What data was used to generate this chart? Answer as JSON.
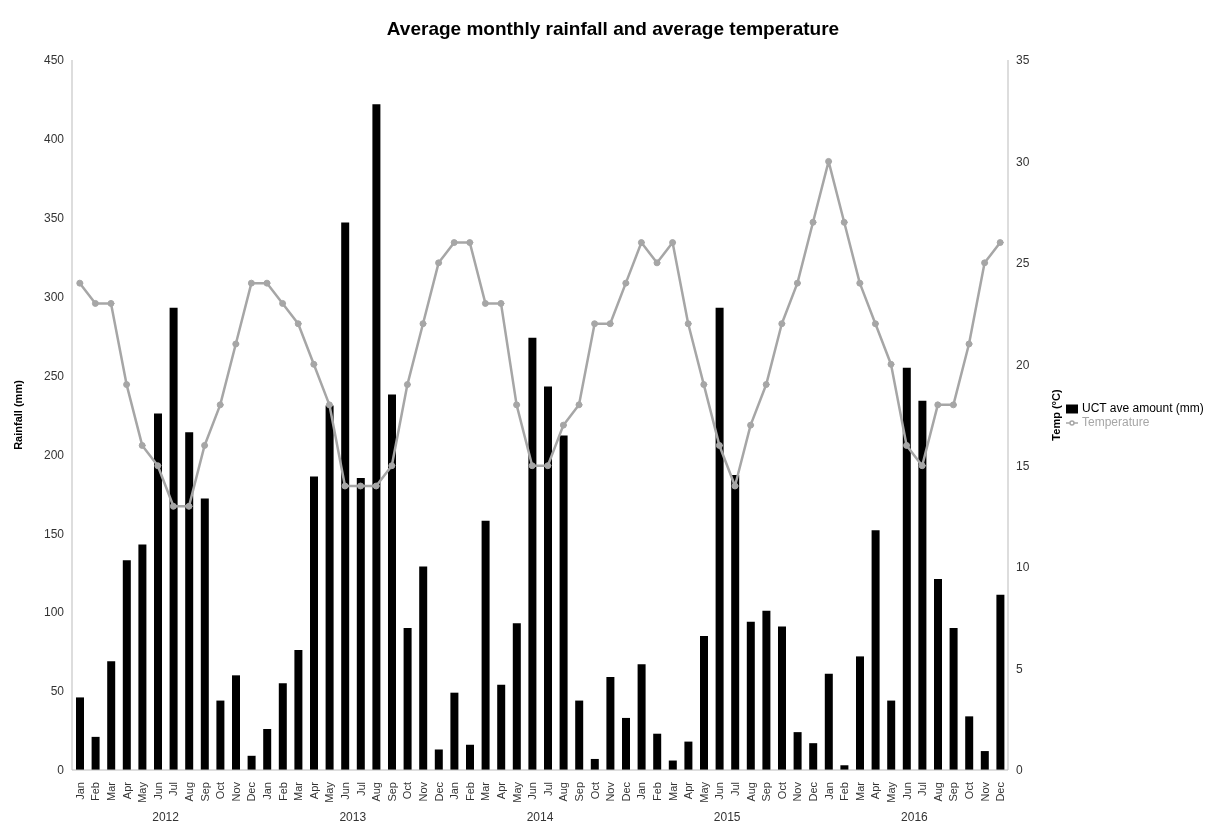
{
  "chart_data": {
    "type": "bar",
    "title": "Average monthly rainfall and average temperature",
    "categories": [
      "Jan",
      "Feb",
      "Mar",
      "Apr",
      "May",
      "Jun",
      "Jul",
      "Aug",
      "Sep",
      "Oct",
      "Nov",
      "Dec",
      "Jan",
      "Feb",
      "Mar",
      "Apr",
      "May",
      "Jun",
      "Jul",
      "Aug",
      "Sep",
      "Oct",
      "Nov",
      "Dec",
      "Jan",
      "Feb",
      "Mar",
      "Apr",
      "May",
      "Jun",
      "Jul",
      "Aug",
      "Sep",
      "Oct",
      "Nov",
      "Dec",
      "Jan",
      "Feb",
      "Mar",
      "Apr",
      "May",
      "Jun",
      "Jul",
      "Aug",
      "Sep",
      "Oct",
      "Nov",
      "Dec",
      "Jan",
      "Feb",
      "Mar",
      "Apr",
      "May",
      "Jun",
      "Jul",
      "Aug",
      "Sep",
      "Oct",
      "Nov",
      "Dec"
    ],
    "annotations": [
      "2012",
      "2013",
      "2014",
      "2015",
      "2016"
    ],
    "ylabel": "Rainfall (mm)",
    "y2label": "Temp (°C)",
    "ylim": [
      0,
      450
    ],
    "yticks": [
      0,
      50,
      100,
      150,
      200,
      250,
      300,
      350,
      400,
      450
    ],
    "y2lim": [
      0,
      35
    ],
    "y2ticks": [
      0,
      5,
      10,
      15,
      20,
      25,
      30,
      35
    ],
    "legend": "right",
    "marker": "circle",
    "series": [
      {
        "name": "UCT ave amount (mm)",
        "color": "#000000",
        "values": [
          46,
          21,
          69,
          133,
          143,
          226,
          293,
          214,
          172,
          44,
          60,
          9,
          26,
          55,
          76,
          186,
          231,
          347,
          185,
          422,
          238,
          90,
          129,
          13,
          49,
          16,
          158,
          54,
          93,
          274,
          243,
          212,
          44,
          7,
          59,
          33,
          67,
          23,
          6,
          18,
          85,
          293,
          187,
          94,
          101,
          91,
          24,
          17,
          61,
          3,
          72,
          152,
          44,
          255,
          234,
          121,
          90,
          34,
          12,
          111
        ]
      },
      {
        "name": "Temperature",
        "type": "line",
        "axis": "y2",
        "color": "#a6a6a6",
        "values": [
          24,
          23,
          23,
          19,
          16,
          15,
          13,
          13,
          16,
          18,
          21,
          24,
          24,
          23,
          22,
          20,
          18,
          14,
          14,
          14,
          15,
          19,
          22,
          25,
          26,
          26,
          23,
          23,
          18,
          15,
          15,
          17,
          18,
          22,
          22,
          24,
          26,
          25,
          26,
          22,
          19,
          16,
          14,
          17,
          19,
          22,
          24,
          27,
          30,
          27,
          24,
          22,
          20,
          16,
          15,
          18,
          18,
          21,
          25,
          26
        ]
      }
    ]
  }
}
